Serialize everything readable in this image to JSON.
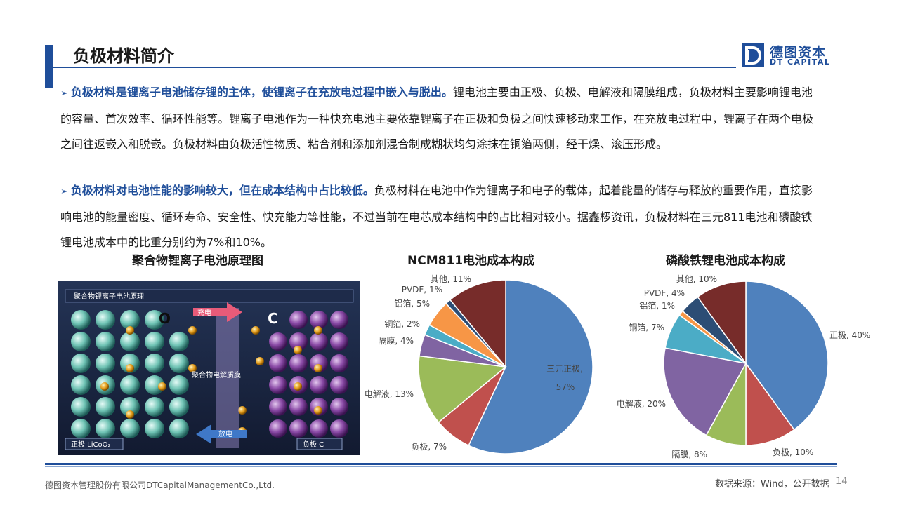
{
  "header": {
    "title": "负极材料简介"
  },
  "logo": {
    "cn": "德图资本",
    "en": "DT CAPITAL",
    "mark": "D"
  },
  "bullets": [
    {
      "lead": "负极材料是锂离子电池储存锂的主体，使锂离子在充放电过程中嵌入与脱出。",
      "body": "锂电池主要由正极、负极、电解液和隔膜组成，负极材料主要影响锂电池的容量、首次效率、循环性能等。锂离子电池作为一种快充电池主要依靠锂离子在正极和负极之间快速移动来工作，在充放电过程中，锂离子在两个电极之间往返嵌入和脱嵌。负极材料由负极活性物质、粘合剂和添加剂混合制成糊状均匀涂抹在铜箔两侧，经干燥、滚压形成。"
    },
    {
      "lead": "负极材料对电池性能的影响较大，但在成本结构中占比较低。",
      "body": "负极材料在电池中作为锂离子和电子的载体，起着能量的储存与释放的重要作用，直接影响电池的能量密度、循环寿命、安全性、快充能力等性能，不过当前在电芯成本结构中的占比相对较小。据鑫椤资讯，负极材料在三元811电池和磷酸铁锂电池成本中的比重分别约为7%和10%。"
    }
  ],
  "figures": {
    "diagram_title": "聚合物锂离子电池原理图",
    "diagram": {
      "header": "聚合物锂离子电池原理",
      "charge": "充电",
      "discharge": "放电",
      "membrane": "聚合物电解质膜",
      "cathode": "正极 LiCoO₂",
      "anode": "负极 C",
      "o_label": "O",
      "c_label": "C",
      "li_label": "Li"
    }
  },
  "chart_data": [
    {
      "type": "pie",
      "title": "NCM811电池成本构成",
      "categories": [
        "三元正极",
        "负极",
        "电解液",
        "隔膜",
        "铜箔",
        "铝箔",
        "PVDF",
        "其他"
      ],
      "values": [
        57,
        7,
        13,
        4,
        2,
        5,
        1,
        11
      ],
      "labels": [
        "三元正极,",
        "负极, 7%",
        "电解液, 13%",
        "隔膜, 4%",
        "铜箔, 2%",
        "铝箔, 5%",
        "PVDF, 1%",
        "其他, 11%"
      ],
      "extra_label": "57%",
      "colors": [
        "#4f81bd",
        "#c0504d",
        "#9bbb59",
        "#8064a2",
        "#4bacc6",
        "#f79646",
        "#2c4d75",
        "#772c2a"
      ]
    },
    {
      "type": "pie",
      "title": "磷酸铁锂电池成本构成",
      "categories": [
        "正极",
        "负极",
        "隔膜",
        "电解液",
        "铜箔",
        "铝箔",
        "PVDF",
        "其他"
      ],
      "values": [
        40,
        10,
        8,
        20,
        7,
        1,
        4,
        10
      ],
      "labels": [
        "正极, 40%",
        "负极, 10%",
        "隔膜, 8%",
        "电解液, 20%",
        "铜箔, 7%",
        "铝箔, 1%",
        "PVDF, 4%",
        "其他, 10%"
      ],
      "colors": [
        "#4f81bd",
        "#c0504d",
        "#9bbb59",
        "#8064a2",
        "#4bacc6",
        "#f79646",
        "#2c4d75",
        "#772c2a"
      ]
    }
  ],
  "footer": {
    "company": "德图资本管理股份有限公司DTCapitalManagementCo.,Ltd.",
    "source": "数据来源：Wind，公开数据",
    "page": "14"
  }
}
